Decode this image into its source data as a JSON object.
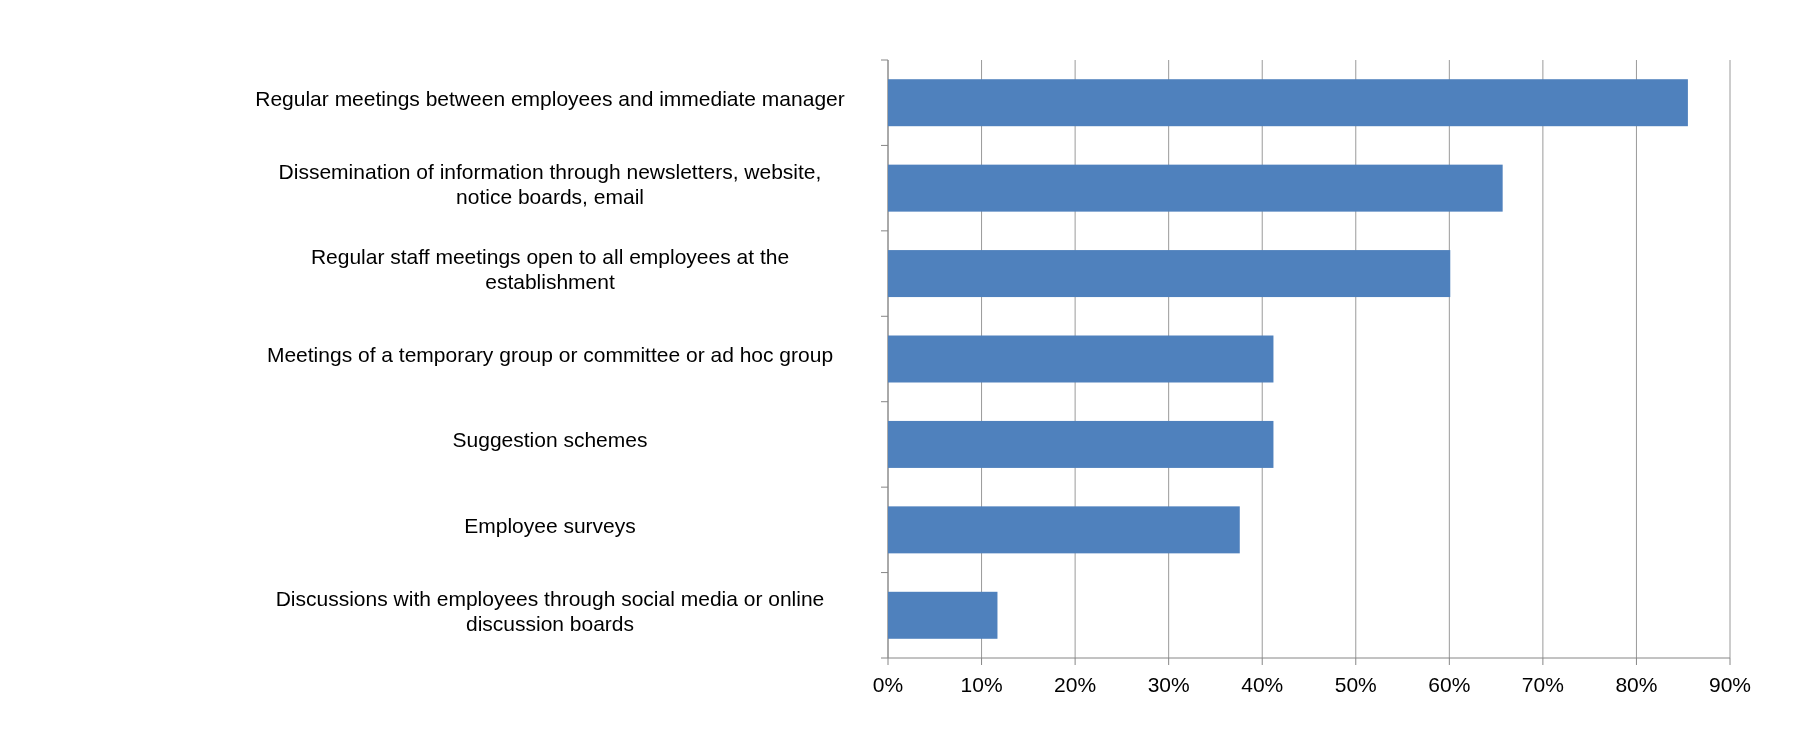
{
  "chart_data": {
    "type": "bar",
    "orientation": "horizontal",
    "categories": [
      "Regular meetings between employees and immediate manager",
      "Dissemination of information through newsletters, website, notice boards, email",
      "Regular staff meetings open to all employees at the establishment",
      "Meetings of a temporary group or committee or ad hoc group",
      "Suggestion schemes",
      "Employee surveys",
      "Discussions with employees through social media or online discussion boards"
    ],
    "values": [
      0.855,
      0.657,
      0.601,
      0.412,
      0.412,
      0.376,
      0.117
    ],
    "color": "#4f81bd",
    "xlim": [
      0,
      0.9
    ],
    "xticks": [
      {
        "value": 0,
        "label": "0%"
      },
      {
        "value": 0.1,
        "label": "10%"
      },
      {
        "value": 0.2,
        "label": "20%"
      },
      {
        "value": 0.3,
        "label": "30%"
      },
      {
        "value": 0.4,
        "label": "40%"
      },
      {
        "value": 0.5,
        "label": "50%"
      },
      {
        "value": 0.6,
        "label": "60%"
      },
      {
        "value": 0.7,
        "label": "70%"
      },
      {
        "value": 0.8,
        "label": "80%"
      },
      {
        "value": 0.9,
        "label": "90%"
      }
    ],
    "grid": "x"
  }
}
